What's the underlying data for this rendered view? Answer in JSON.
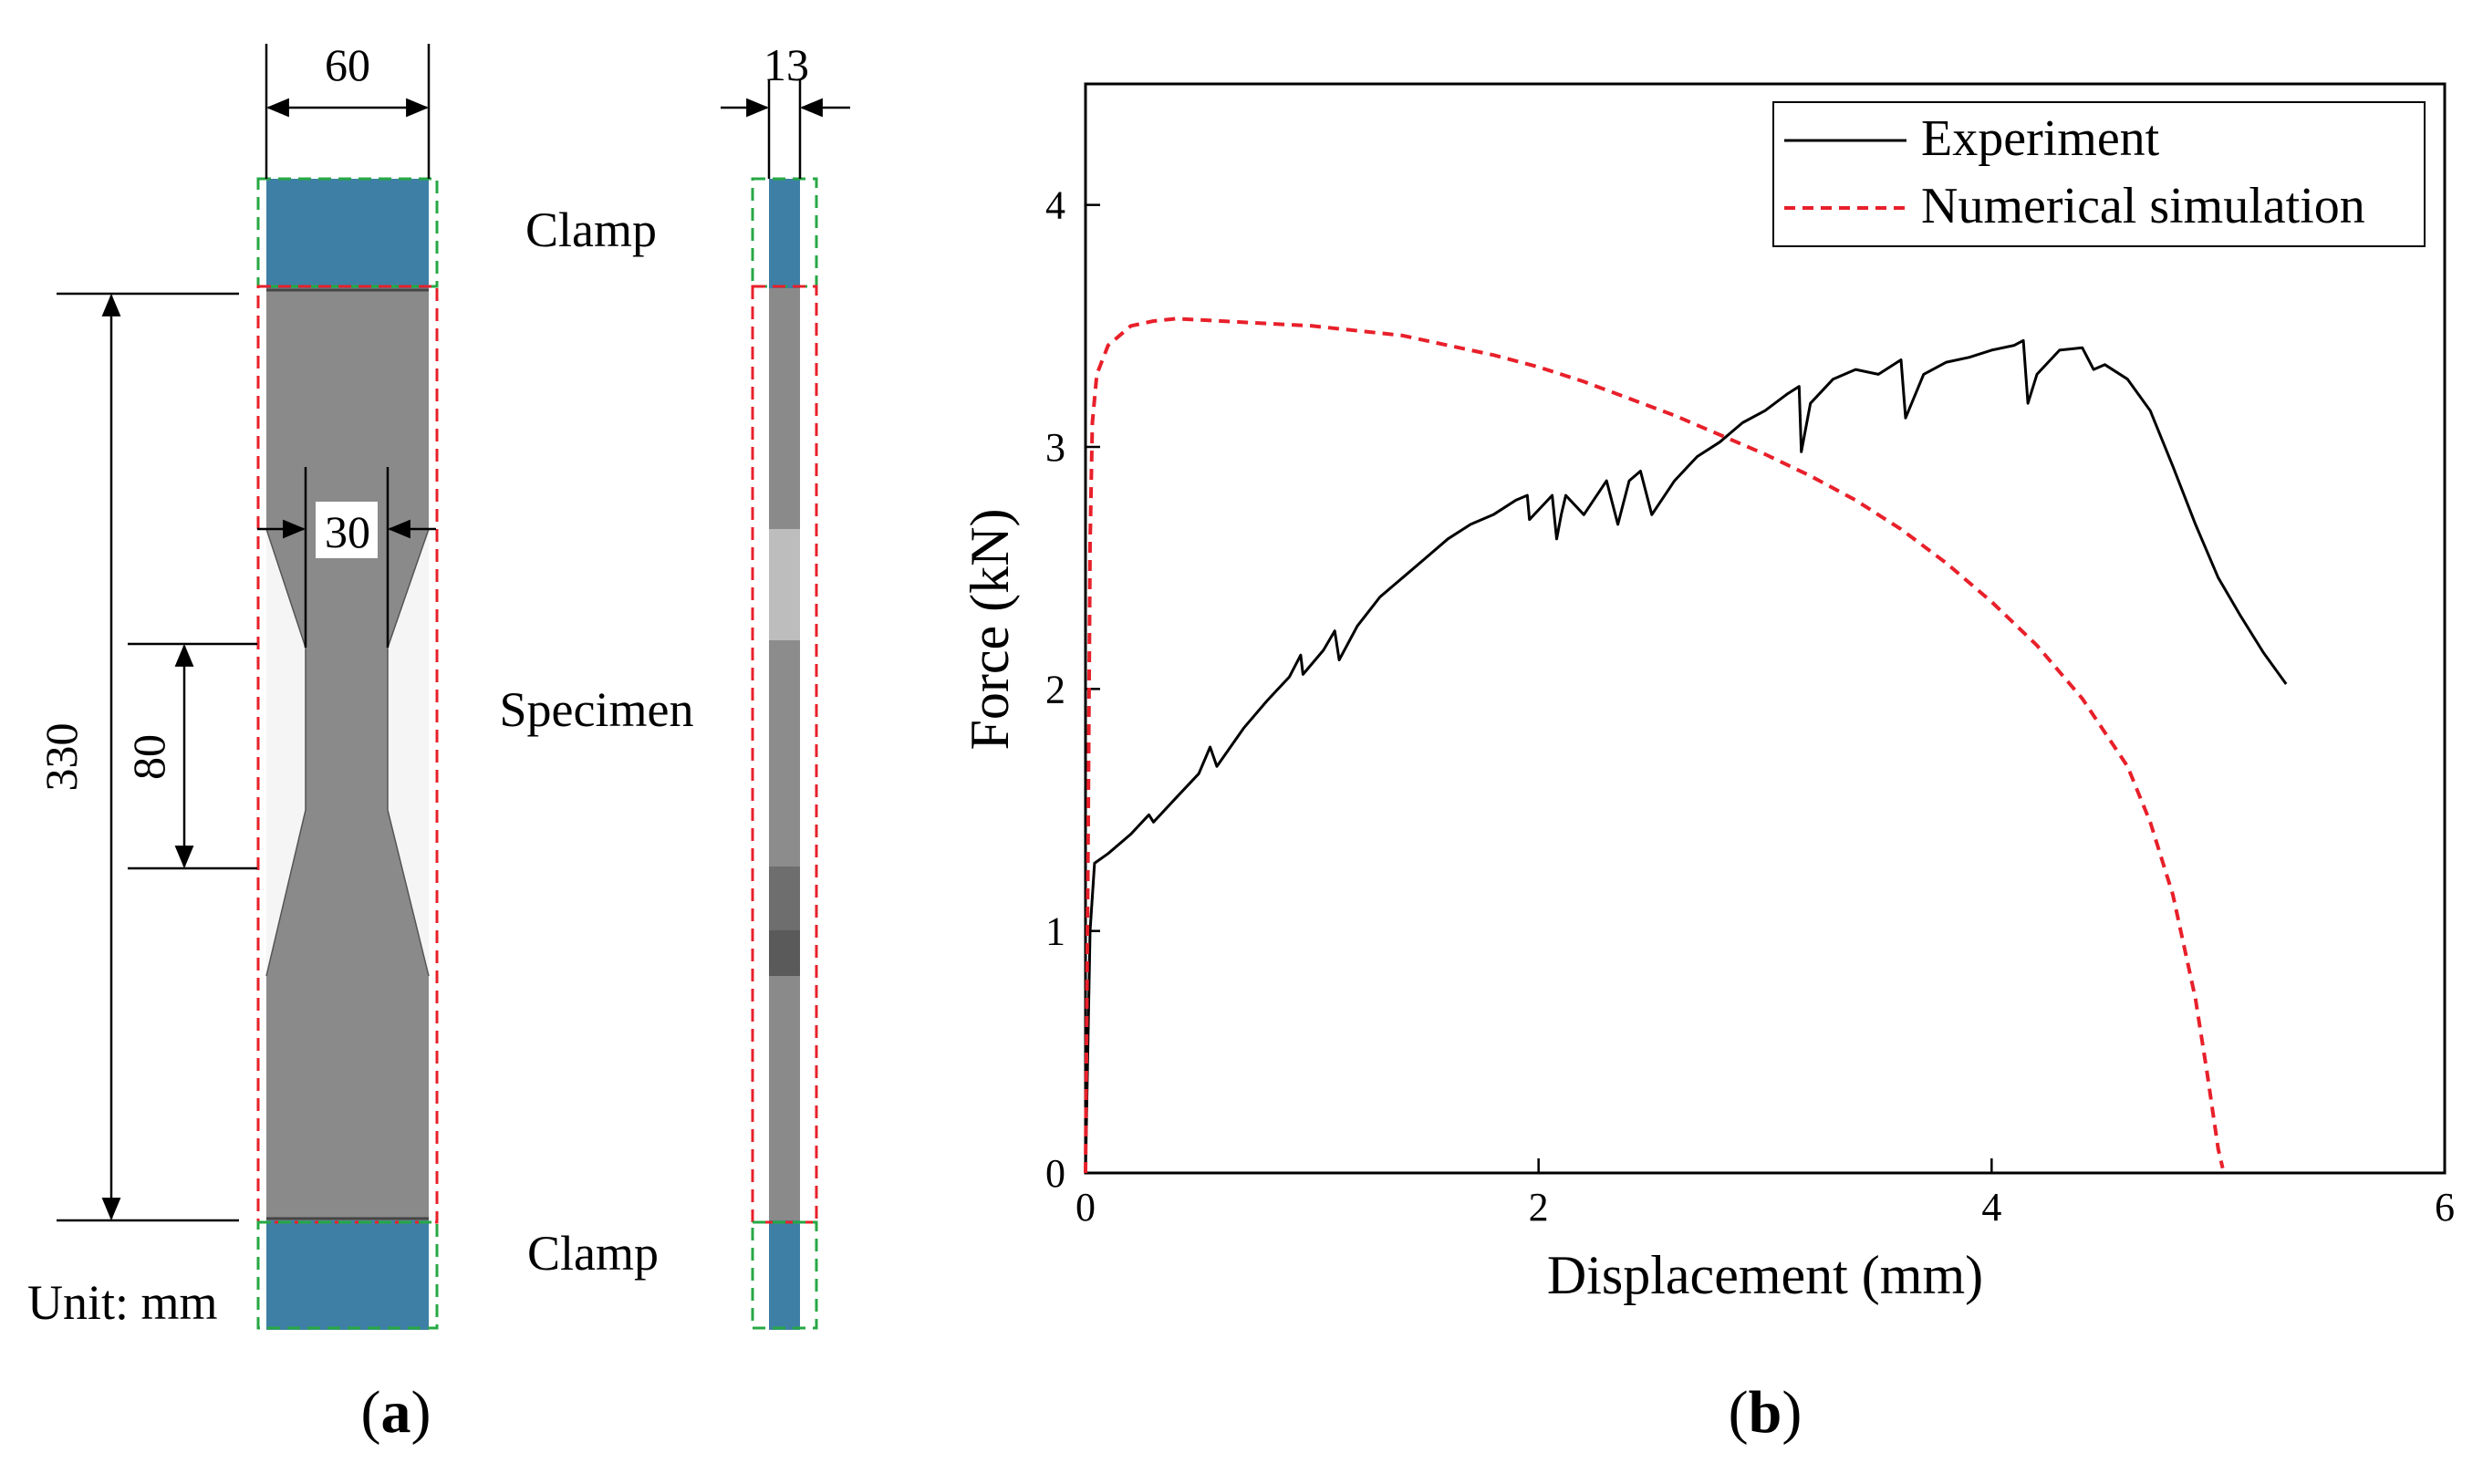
{
  "panel_a": {
    "label_prefix": "(",
    "label_letter": "a",
    "label_suffix": ")",
    "dim_width": "60",
    "dim_thickness": "13",
    "dim_neck": "30",
    "dim_length": "330",
    "dim_gauge": "80",
    "clamp_top": "Clamp",
    "clamp_bottom": "Clamp",
    "specimen": "Specimen",
    "unit": "Unit: mm",
    "colors": {
      "clamp": "#3e7fa6",
      "specimen": "#8a8a8a",
      "clamp_box": "#27a844",
      "specimen_box": "#e8202a"
    }
  },
  "panel_b": {
    "label_prefix": "(",
    "label_letter": "b",
    "label_suffix": ")"
  },
  "chart_data": {
    "type": "line",
    "xlabel": "Displacement (mm)",
    "ylabel": "Force (kN)",
    "xlim": [
      0,
      6
    ],
    "ylim": [
      0,
      4.5
    ],
    "xticks": [
      0,
      2,
      4,
      6
    ],
    "yticks": [
      0,
      1,
      2,
      3,
      4
    ],
    "legend_position": "top-right",
    "series": [
      {
        "name": "Experiment",
        "color": "#000000",
        "style": "solid",
        "x": [
          0,
          0.02,
          0.04,
          0.1,
          0.2,
          0.28,
          0.3,
          0.4,
          0.5,
          0.55,
          0.58,
          0.7,
          0.8,
          0.9,
          0.95,
          0.96,
          1.05,
          1.1,
          1.12,
          1.2,
          1.25,
          1.3,
          1.4,
          1.5,
          1.6,
          1.7,
          1.8,
          1.9,
          1.95,
          1.96,
          2.0,
          2.06,
          2.08,
          2.1,
          2.12,
          2.2,
          2.3,
          2.35,
          2.4,
          2.45,
          2.5,
          2.6,
          2.7,
          2.8,
          2.9,
          3.0,
          3.1,
          3.15,
          3.16,
          3.2,
          3.3,
          3.4,
          3.5,
          3.6,
          3.62,
          3.7,
          3.8,
          3.9,
          4.0,
          4.1,
          4.14,
          4.16,
          4.2,
          4.3,
          4.4,
          4.45,
          4.5,
          4.6,
          4.7,
          4.8,
          4.9,
          5.0,
          5.1,
          5.2,
          5.3
        ],
        "y": [
          0,
          1.0,
          1.28,
          1.32,
          1.4,
          1.48,
          1.45,
          1.55,
          1.65,
          1.76,
          1.68,
          1.84,
          1.95,
          2.05,
          2.14,
          2.06,
          2.16,
          2.24,
          2.12,
          2.26,
          2.32,
          2.38,
          2.46,
          2.54,
          2.62,
          2.68,
          2.72,
          2.78,
          2.8,
          2.7,
          2.74,
          2.8,
          2.62,
          2.72,
          2.8,
          2.72,
          2.86,
          2.68,
          2.86,
          2.9,
          2.72,
          2.86,
          2.96,
          3.02,
          3.1,
          3.15,
          3.22,
          3.25,
          2.98,
          3.18,
          3.28,
          3.32,
          3.3,
          3.36,
          3.12,
          3.3,
          3.35,
          3.37,
          3.4,
          3.42,
          3.44,
          3.18,
          3.3,
          3.4,
          3.41,
          3.32,
          3.34,
          3.28,
          3.15,
          2.92,
          2.68,
          2.46,
          2.3,
          2.15,
          2.02
        ]
      },
      {
        "name": "Numerical simulation",
        "color": "#e8202a",
        "style": "dashed",
        "x": [
          0,
          0.01,
          0.02,
          0.03,
          0.05,
          0.1,
          0.2,
          0.3,
          0.4,
          0.6,
          0.8,
          1.0,
          1.2,
          1.4,
          1.6,
          1.8,
          2.0,
          2.2,
          2.4,
          2.6,
          2.8,
          3.0,
          3.2,
          3.4,
          3.6,
          3.8,
          4.0,
          4.2,
          4.4,
          4.6,
          4.7,
          4.8,
          4.9,
          4.95,
          5.0,
          5.02
        ],
        "y": [
          0,
          1.2,
          2.6,
          3.1,
          3.3,
          3.42,
          3.5,
          3.52,
          3.53,
          3.52,
          3.51,
          3.5,
          3.48,
          3.46,
          3.42,
          3.38,
          3.33,
          3.27,
          3.2,
          3.13,
          3.05,
          2.97,
          2.88,
          2.78,
          2.66,
          2.52,
          2.36,
          2.18,
          1.96,
          1.68,
          1.45,
          1.15,
          0.72,
          0.42,
          0.1,
          0.02
        ]
      }
    ]
  }
}
